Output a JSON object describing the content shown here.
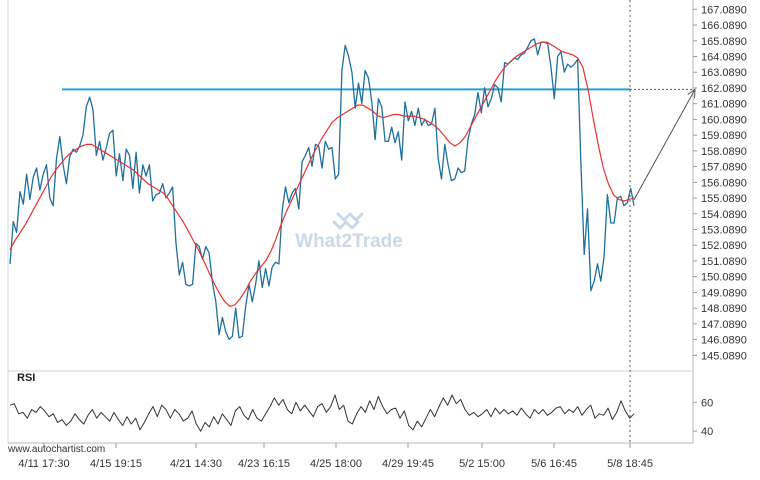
{
  "chart_data": [
    {
      "type": "line",
      "panel": "price",
      "y_ticks": [
        "167.0890",
        "166.0890",
        "165.0890",
        "164.0890",
        "163.0890",
        "162.0890",
        "161.0890",
        "160.0890",
        "159.0890",
        "158.0890",
        "157.0890",
        "156.0890",
        "155.0890",
        "154.0890",
        "153.0890",
        "152.0890",
        "151.0890",
        "150.0890",
        "149.0890",
        "148.0890",
        "147.0890",
        "146.0890",
        "145.0890"
      ],
      "ylim": [
        144.6,
        167.3
      ],
      "x_ticks": [
        "4/11 17:30",
        "4/15 19:15",
        "4/21 14:30",
        "4/23 16:15",
        "4/25 18:00",
        "4/29 19:45",
        "5/2 15:00",
        "5/6 16:45",
        "5/8 18:45"
      ],
      "series": [
        {
          "kind": "price",
          "color": "#1f6f9e",
          "values": [
            150.9,
            153.6,
            152.9,
            155.5,
            154.7,
            156.6,
            155.0,
            156.4,
            157.0,
            155.6,
            156.6,
            157.2,
            155.1,
            154.6,
            157.6,
            159.0,
            157.2,
            156.0,
            157.7,
            158.2,
            158.0,
            158.4,
            159.1,
            160.9,
            161.5,
            160.7,
            157.8,
            158.7,
            157.5,
            158.3,
            159.2,
            159.4,
            156.5,
            157.9,
            156.2,
            158.2,
            157.8,
            155.7,
            158.0,
            155.4,
            157.2,
            156.5,
            157.2,
            154.9,
            155.3,
            155.4,
            156.0,
            155.1,
            155.4,
            155.8,
            152.2,
            150.2,
            151.0,
            149.6,
            149.5,
            149.6,
            152.2,
            152.0,
            151.2,
            152.0,
            151.6,
            149.7,
            148.5,
            146.4,
            147.5,
            146.6,
            146.1,
            146.3,
            148.1,
            146.2,
            146.3,
            148.2,
            149.6,
            148.5,
            149.6,
            151.1,
            149.4,
            150.6,
            149.5,
            150.7,
            151.0,
            150.9,
            154.3,
            155.8,
            154.8,
            155.4,
            155.7,
            154.4,
            157.4,
            157.8,
            158.3,
            157.1,
            158.5,
            158.4,
            157.0,
            158.7,
            158.2,
            158.3,
            156.3,
            156.6,
            163.2,
            164.8,
            164.1,
            163.1,
            160.8,
            162.4,
            161.1,
            163.2,
            162.7,
            161.2,
            158.8,
            161.4,
            160.9,
            158.7,
            158.7,
            159.6,
            158.6,
            159.3,
            157.5,
            161.2,
            160.0,
            160.6,
            159.7,
            160.8,
            159.7,
            160.1,
            159.7,
            159.8,
            160.8,
            157.6,
            156.3,
            158.5,
            157.2,
            156.2,
            156.3,
            157.0,
            156.7,
            156.8,
            158.8,
            159.8,
            160.4,
            161.8,
            160.5,
            162.1,
            160.9,
            161.4,
            162.3,
            162.1,
            161.2,
            163.7,
            163.6,
            163.8,
            164.0,
            163.9,
            164.2,
            164.3,
            164.7,
            165.1,
            165.2,
            164.2,
            165.0,
            165.0,
            164.9,
            163.4,
            161.4,
            164.1,
            164.4,
            163.1,
            163.6,
            163.4,
            163.6,
            163.9,
            157.3,
            151.5,
            154.4,
            149.2,
            149.8,
            150.9,
            149.8,
            151.4,
            155.3,
            153.5,
            153.5,
            155.1,
            155.2,
            154.6,
            154.8,
            155.7,
            154.6
          ]
        },
        {
          "kind": "moving-average",
          "color": "#e8312f",
          "values": [
            151.8,
            152.4,
            152.9,
            153.4,
            154.0,
            154.6,
            155.2,
            155.8,
            156.4,
            156.9,
            157.3,
            157.7,
            158.0,
            158.2,
            158.4,
            158.5,
            158.5,
            158.3,
            158.1,
            157.9,
            157.7,
            157.5,
            157.3,
            157.1,
            156.9,
            156.6,
            156.3,
            156.0,
            155.8,
            155.6,
            155.4,
            155.0,
            154.5,
            154.0,
            153.5,
            152.9,
            152.3,
            151.7,
            151.0,
            150.3,
            149.6,
            149.0,
            148.5,
            148.2,
            148.3,
            148.7,
            149.2,
            149.8,
            150.3,
            150.7,
            151.1,
            151.7,
            152.5,
            153.4,
            154.2,
            154.9,
            155.6,
            156.3,
            157.0,
            157.7,
            158.3,
            158.9,
            159.4,
            159.9,
            160.2,
            160.4,
            160.6,
            160.8,
            161.0,
            161.0,
            160.8,
            160.6,
            160.3,
            160.2,
            160.3,
            160.4,
            160.4,
            160.3,
            160.3,
            160.3,
            160.2,
            160.1,
            159.9,
            159.7,
            159.4,
            159.0,
            158.6,
            158.4,
            158.6,
            159.0,
            159.6,
            160.2,
            160.8,
            161.4,
            162.0,
            162.6,
            163.1,
            163.5,
            163.8,
            164.1,
            164.3,
            164.5,
            164.7,
            164.9,
            165.0,
            165.0,
            164.8,
            164.6,
            164.4,
            164.3,
            164.2,
            164.0,
            163.4,
            162.0,
            160.2,
            158.5,
            157.0,
            156.0,
            155.3,
            155.0,
            154.9,
            155.0,
            155.1
          ]
        }
      ],
      "resistance_level": 162.0,
      "projection_end_value": 162.0,
      "colors": {
        "resistance": "#2a9fd6",
        "projection": "#555555",
        "current_time_marker": "#555555"
      }
    },
    {
      "type": "line",
      "panel": "indicator",
      "title": "RSI",
      "y_ticks": [
        "60",
        "40"
      ],
      "ylim": [
        36,
        74
      ],
      "series": [
        {
          "kind": "rsi",
          "color": "#333333",
          "values": [
            58,
            59,
            52,
            53,
            49,
            55,
            53,
            57,
            54,
            50,
            52,
            46,
            48,
            44,
            47,
            52,
            48,
            45,
            51,
            55,
            49,
            53,
            50,
            47,
            53,
            48,
            44,
            50,
            45,
            49,
            41,
            46,
            52,
            57,
            50,
            58,
            55,
            49,
            55,
            52,
            47,
            49,
            54,
            45,
            40,
            46,
            43,
            50,
            45,
            52,
            48,
            44,
            54,
            57,
            51,
            48,
            55,
            49,
            47,
            52,
            57,
            63,
            58,
            62,
            55,
            52,
            60,
            54,
            58,
            54,
            50,
            57,
            59,
            53,
            57,
            65,
            55,
            58,
            47,
            45,
            52,
            57,
            53,
            61,
            55,
            64,
            57,
            52,
            55,
            56,
            49,
            54,
            44,
            41,
            47,
            43,
            49,
            55,
            50,
            57,
            63,
            58,
            65,
            59,
            62,
            55,
            51,
            53,
            50,
            52,
            55,
            50,
            56,
            52,
            55,
            52,
            54,
            51,
            56,
            52,
            49,
            55,
            52,
            55,
            51,
            53,
            56,
            57,
            52,
            55,
            53,
            57,
            51,
            55,
            58,
            49,
            52,
            51,
            56,
            48,
            53,
            61,
            54,
            49,
            52
          ]
        }
      ],
      "colors": {
        "line": "#333333"
      }
    }
  ],
  "watermark": {
    "text": "What2Trade",
    "color": "#c9d9e8"
  },
  "footer": {
    "site": "www.autochartist.com"
  }
}
